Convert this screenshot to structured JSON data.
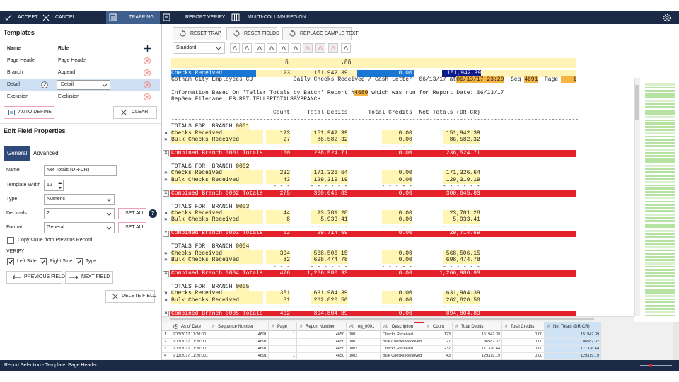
{
  "toolbar": {
    "accept": "ACCEPT",
    "cancel": "CANCEL",
    "trapping": "TRAPPING",
    "report_verify": "REPORT VERIFY",
    "multi_column_region": "MULTI-COLUMN REGION"
  },
  "templates": {
    "title": "Templates",
    "columns": [
      "Name",
      "Role"
    ],
    "rows": [
      {
        "name": "Page Header",
        "role": "Page Header"
      },
      {
        "name": "Branch",
        "role": "Append"
      },
      {
        "name": "Detail",
        "role": "Detail"
      },
      {
        "name": "Exclusion",
        "role": "Exclusion"
      }
    ],
    "selected_row": 2,
    "auto_define": "AUTO DEFINE",
    "clear": "CLEAR"
  },
  "edit_field_properties": {
    "title": "Edit Field Properties",
    "tabs": [
      "General",
      "Advanced"
    ],
    "active_tab": 0,
    "fields": [
      {
        "label": "Name",
        "value": "Net Totals (DR-CR)"
      },
      {
        "label": "Template Width",
        "value": "12"
      },
      {
        "label": "Type",
        "value": "Numeric"
      },
      {
        "label": "Decimals",
        "value": "2"
      },
      {
        "label": "Format",
        "value": "General"
      }
    ],
    "set_all": "SET ALL",
    "help": "?",
    "copy_value": {
      "label": "Copy Value from Previous Record",
      "checked": false
    },
    "verify": {
      "title": "VERIFY",
      "options": [
        {
          "label": "Left Side",
          "checked": true
        },
        {
          "label": "Right Side",
          "checked": true
        },
        {
          "label": "Type",
          "checked": true
        }
      ]
    },
    "previous_field": "PREVIOUS FIELD",
    "next_field": "NEXT FIELD",
    "delete_field": "DELETE FIELD"
  },
  "report_toolbar": {
    "reset_trap": "RESET TRAP",
    "reset_fields": "RESET FIELDS",
    "replace_sample_text": "REPLACE SAMPLE TEXT",
    "style": "Standard"
  },
  "report": {
    "marker_row": [
      "ñ",
      ".ññ"
    ],
    "sample_row": [
      "Checks Received",
      "123",
      "151,942.39",
      "0.00",
      "151,942.39"
    ],
    "heading": {
      "institution": "Gotham City Employees CU",
      "title": "Daily Checks Received / Cash Letter",
      "run": "06/13/17 at",
      "timestamp": "06/13/17 23:20",
      "seq_label": "Seq",
      "seq": "4691",
      "page_label": "Page",
      "page": "1"
    },
    "info": [
      "Information Based On 'Teller Totals by Batch' Report #",
      "4650",
      " which was run for Report Date: 06/13/17"
    ],
    "filename": "RepGen Filename: EB.RPT.TELLERTOTALSBYBRANCH",
    "columns": [
      "Count",
      "Total Debits",
      "Total Credits",
      "Net Totals (DR-CR)"
    ],
    "rule": "------------------------------------------------------------------------------------------------------------------------",
    "row_marker": "»",
    "total_marker": "×",
    "branches": [
      {
        "title": "TOTALS FOR: BRANCH",
        "branch": "0001",
        "rows": [
          [
            "Checks Received",
            "123",
            "151,942.39",
            "0.00",
            "151,942.39"
          ],
          [
            "Bulk Checks Received",
            "27",
            "86,582.32",
            "0.00",
            "86,582.32"
          ]
        ],
        "separator": [
          "- - -",
          "- - - - - -",
          "- - - - -",
          "- - - - - -"
        ],
        "total": [
          "Combined Branch 0001 Totals",
          "150",
          "238,524.71",
          "0.00",
          "238,524.71"
        ]
      },
      {
        "title": "TOTALS FOR: BRANCH",
        "branch": "0002",
        "rows": [
          [
            "Checks Received",
            "232",
            "171,326.64",
            "0.00",
            "171,326.64"
          ],
          [
            "Bulk Checks Received",
            "43",
            "129,319.19",
            "0.00",
            "129,319.19"
          ]
        ],
        "separator": [
          "- - -",
          "- - - - - -",
          "- - - - -",
          "- - - - - -"
        ],
        "total": [
          "Combined Branch 0002 Totals",
          "275",
          "300,645.83",
          "0.00",
          "300,645.83"
        ]
      },
      {
        "title": "TOTALS FOR: BRANCH",
        "branch": "0003",
        "rows": [
          [
            "Checks Received",
            "44",
            "23,781.28",
            "0.00",
            "23,781.28"
          ],
          [
            "Bulk Checks Received",
            "8",
            "5,933.41",
            "0.00",
            "5,933.41"
          ]
        ],
        "separator": [
          "- - -",
          "- - - - - -",
          "- - - - -",
          "- - - - - -"
        ],
        "total": [
          "Combined Branch 0003 Totals",
          "52",
          "29,714.69",
          "0.00",
          "29,714.69"
        ]
      },
      {
        "title": "TOTALS FOR: BRANCH",
        "branch": "0004",
        "rows": [
          [
            "Checks Received",
            "394",
            "568,506.15",
            "0.00",
            "568,506.15"
          ],
          [
            "Bulk Checks Received",
            "82",
            "698,474.78",
            "0.00",
            "698,474.78"
          ]
        ],
        "separator": [
          "- - -",
          "- - - - - -",
          "- - - - -",
          "- - - - - -"
        ],
        "total": [
          "Combined Branch 0004 Totals",
          "476",
          "1,266,980.93",
          "0.00",
          "1,266,980.93"
        ]
      },
      {
        "title": "TOTALS FOR: BRANCH",
        "branch": "0005",
        "rows": [
          [
            "Checks Received",
            "351",
            "631,984.39",
            "0.00",
            "631,984.39"
          ],
          [
            "Bulk Checks Received",
            "81",
            "262,820.50",
            "0.00",
            "262,820.50"
          ]
        ],
        "separator": [
          "- - -",
          "- - - - - -",
          "- - - - -",
          "- - - - - -"
        ],
        "total": [
          "Combined Branch 0005 Totals",
          "432",
          "894,804.89",
          "0.00",
          "894,804.89"
        ]
      }
    ]
  },
  "grid": {
    "columns": [
      {
        "label": "As of Date"
      },
      {
        "icon": "#",
        "label": "Sequence Number"
      },
      {
        "icon": "#",
        "label": "Page"
      },
      {
        "icon": "#",
        "label": "Report Number"
      },
      {
        "icon": "Ab",
        "label": "eg_0001"
      },
      {
        "icon": "Ab",
        "label": "Description"
      },
      {
        "icon": "#",
        "label": "Count"
      },
      {
        "icon": "#",
        "label": "Total Debits"
      },
      {
        "icon": "#",
        "label": "Total Credits"
      },
      {
        "icon": "#",
        "label": "Net Totals (DR-CR)"
      }
    ],
    "rows": [
      {
        "number": "1",
        "cells": [
          "6/13/2017 11:20:00...",
          "4691",
          "1",
          "4650",
          "0001",
          "Checks Received",
          "123",
          "151942.39",
          "0.00",
          "151942.39"
        ]
      },
      {
        "number": "2",
        "cells": [
          "6/13/2017 11:20:00...",
          "4691",
          "1",
          "4650",
          "0001",
          "Bulk Checks Received",
          "27",
          "86582.32",
          "0.00",
          "86582.32"
        ]
      },
      {
        "number": "3",
        "cells": [
          "6/13/2017 11:20:00...",
          "4691",
          "1",
          "4650",
          "0002",
          "Checks Received",
          "232",
          "171326.64",
          "0.00",
          "171326.64"
        ]
      },
      {
        "number": "4",
        "cells": [
          "6/13/2017 11:20:00...",
          "4691",
          "1",
          "4650",
          "0002",
          "Bulk Checks Received",
          "43",
          "129319.19",
          "0.00",
          "129319.19"
        ]
      }
    ]
  },
  "status_bar": "Report Selection - Template: Page Header"
}
